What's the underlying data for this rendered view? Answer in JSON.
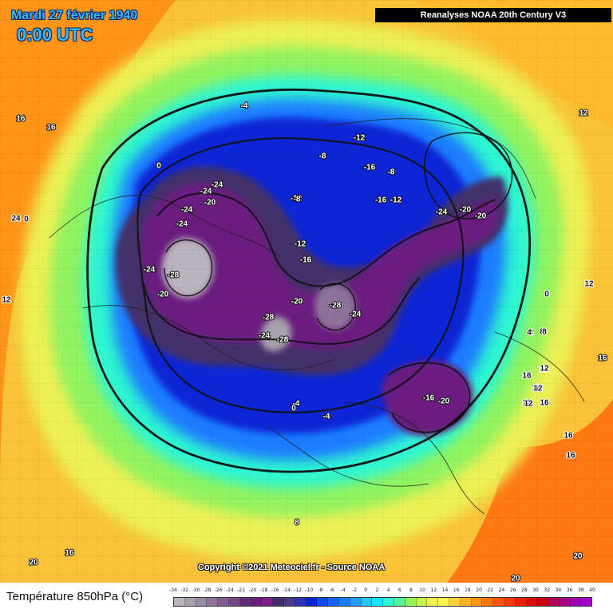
{
  "header": {
    "date": "Mardi 27 février 1940",
    "time": "0:00 UTC",
    "source": "Reanalyses NOAA 20th Century V3"
  },
  "footer": {
    "copyright": "Copyright ©2021 Meteociel.fr - Source NOAA",
    "legend_title": "Température 850hPa (°C)",
    "legend_ticks": [
      "-34",
      "-32",
      "-30",
      "-28",
      "-26",
      "-24",
      "-22",
      "-20",
      "-18",
      "-16",
      "-14",
      "-12",
      "-10",
      "-8",
      "-6",
      "-4",
      "-2",
      "0",
      "2",
      "4",
      "6",
      "8",
      "10",
      "12",
      "14",
      "16",
      "18",
      "20",
      "22",
      "24",
      "26",
      "28",
      "30",
      "32",
      "34",
      "36",
      "38",
      "40"
    ],
    "legend_colors": [
      "#b9b3bc",
      "#a7a0ad",
      "#9a8ba5",
      "#8d7299",
      "#815c8f",
      "#764887",
      "#5f2f75",
      "#6a1d7f",
      "#7e1f8a",
      "#42306b",
      "#4b3a8a",
      "#2e31b2",
      "#0b25d5",
      "#0d48ef",
      "#1563ff",
      "#1a7cff",
      "#239fff",
      "#20c9ff",
      "#19e7ff",
      "#2ef6d2",
      "#58f396",
      "#93f45d",
      "#c7f34c",
      "#ecf253",
      "#fff44f",
      "#ffd13d",
      "#ffb325",
      "#ff9410",
      "#ff7600",
      "#ff5800",
      "#f43a00",
      "#e81f00",
      "#d90d00",
      "#ca0013",
      "#b5004f",
      "#a40088",
      "#9c00b4",
      "#a300cf"
    ]
  },
  "map": {
    "labels": [
      {
        "text": "-4"
      },
      {
        "text": "0"
      },
      {
        "text": "-24"
      },
      {
        "text": "-24"
      },
      {
        "text": "-20"
      },
      {
        "text": "-24"
      },
      {
        "text": "-24"
      },
      {
        "text": "-20"
      },
      {
        "text": "-28"
      },
      {
        "text": "-24"
      },
      {
        "text": "-12"
      },
      {
        "text": "-8"
      },
      {
        "text": "-12"
      },
      {
        "text": "-8"
      },
      {
        "text": "-16"
      },
      {
        "text": "-8"
      },
      {
        "text": "-16"
      },
      {
        "text": "-12"
      },
      {
        "text": "-24"
      },
      {
        "text": "-20"
      },
      {
        "text": "-20"
      },
      {
        "text": "-12"
      },
      {
        "text": "-16"
      },
      {
        "text": "-20"
      },
      {
        "text": "-28"
      },
      {
        "text": "-28"
      },
      {
        "text": "-24"
      },
      {
        "text": "-24"
      },
      {
        "text": "-28"
      },
      {
        "text": "-16"
      },
      {
        "text": "-20"
      },
      {
        "text": "-4"
      },
      {
        "text": "0"
      },
      {
        "text": "-4"
      },
      {
        "text": "4"
      },
      {
        "text": "8"
      },
      {
        "text": "12"
      },
      {
        "text": "12"
      },
      {
        "text": "16"
      },
      {
        "text": "16"
      },
      {
        "text": "24"
      },
      {
        "text": "0"
      },
      {
        "text": "12"
      },
      {
        "text": "0"
      },
      {
        "text": "12"
      },
      {
        "text": "4"
      },
      {
        "text": "8"
      },
      {
        "text": "12"
      },
      {
        "text": "16"
      },
      {
        "text": "12"
      },
      {
        "text": "16"
      },
      {
        "text": "12"
      },
      {
        "text": "16"
      },
      {
        "text": "16"
      },
      {
        "text": "16"
      },
      {
        "text": "20"
      },
      {
        "text": "20"
      },
      {
        "text": "20"
      },
      {
        "text": "16"
      },
      {
        "text": "16"
      },
      {
        "text": "16"
      },
      {
        "text": "12"
      },
      {
        "text": "8"
      }
    ]
  }
}
